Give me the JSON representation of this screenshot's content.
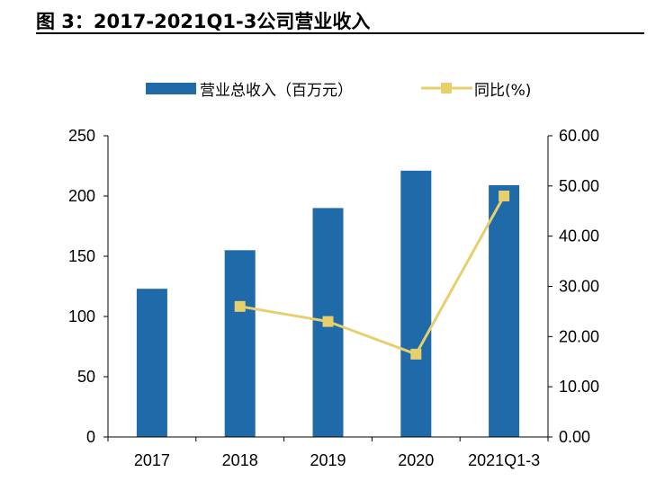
{
  "figure": {
    "title": "图 3：2017-2021Q1-3公司营业收入"
  },
  "colors": {
    "bar": "#1f6aa8",
    "line": "#e8cf6e",
    "axis": "#000000"
  },
  "chart_data": {
    "type": "bar",
    "title": "",
    "categories": [
      "2017",
      "2018",
      "2019",
      "2020",
      "2021Q1-3"
    ],
    "series": [
      {
        "name": "营业总收入（百万元）",
        "type": "bar",
        "axis": "left",
        "values": [
          123,
          155,
          190,
          221,
          209
        ]
      },
      {
        "name": "同比(%)",
        "type": "line",
        "axis": "right",
        "values": [
          null,
          26.0,
          23.0,
          16.5,
          48.0
        ]
      }
    ],
    "y_left": {
      "min": 0,
      "max": 250,
      "ticks": [
        "0",
        "50",
        "100",
        "150",
        "200",
        "250"
      ]
    },
    "y_right": {
      "min": 0,
      "max": 60,
      "ticks": [
        "0.00",
        "10.00",
        "20.00",
        "30.00",
        "40.00",
        "50.00",
        "60.00"
      ]
    },
    "grid": false,
    "legend_position": "top"
  }
}
